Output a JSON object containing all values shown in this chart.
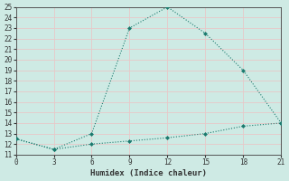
{
  "xlabel": "Humidex (Indice chaleur)",
  "background_color": "#ceeae4",
  "grid_color": "#e8c8c8",
  "line_color": "#1a7a6e",
  "xlim": [
    0,
    21
  ],
  "ylim": [
    11,
    25
  ],
  "xticks": [
    0,
    3,
    6,
    9,
    12,
    15,
    18,
    21
  ],
  "yticks": [
    11,
    12,
    13,
    14,
    15,
    16,
    17,
    18,
    19,
    20,
    21,
    22,
    23,
    24,
    25
  ],
  "line1_x": [
    0,
    3,
    6,
    9,
    12,
    15,
    18,
    21
  ],
  "line1_y": [
    12.5,
    11.5,
    13.0,
    23.0,
    25.0,
    22.5,
    19.0,
    14.0
  ],
  "line2_x": [
    0,
    3,
    6,
    9,
    12,
    15,
    18,
    21
  ],
  "line2_y": [
    12.5,
    11.5,
    12.0,
    12.3,
    12.6,
    13.0,
    13.7,
    14.0
  ]
}
